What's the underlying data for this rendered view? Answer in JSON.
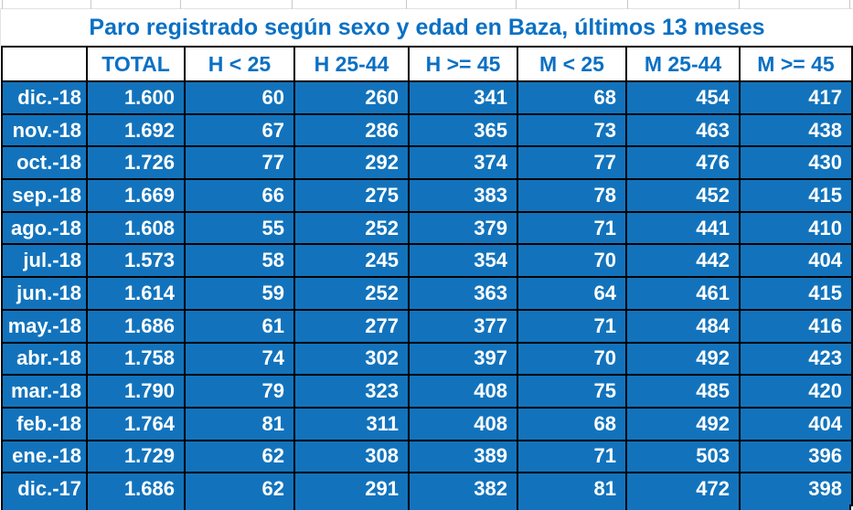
{
  "title": "Paro registrado según sexo y edad en Baza, últimos 13 meses",
  "table": {
    "corner_label": "",
    "columns": [
      "TOTAL",
      "H < 25",
      "H 25-44",
      "H >= 45",
      "M < 25",
      "M 25-44",
      "M >= 45"
    ],
    "rows": [
      {
        "month": "dic.-18",
        "values": [
          "1.600",
          "60",
          "260",
          "341",
          "68",
          "454",
          "417"
        ]
      },
      {
        "month": "nov.-18",
        "values": [
          "1.692",
          "67",
          "286",
          "365",
          "73",
          "463",
          "438"
        ]
      },
      {
        "month": "oct.-18",
        "values": [
          "1.726",
          "77",
          "292",
          "374",
          "77",
          "476",
          "430"
        ]
      },
      {
        "month": "sep.-18",
        "values": [
          "1.669",
          "66",
          "275",
          "383",
          "78",
          "452",
          "415"
        ]
      },
      {
        "month": "ago.-18",
        "values": [
          "1.608",
          "55",
          "252",
          "379",
          "71",
          "441",
          "410"
        ]
      },
      {
        "month": "jul.-18",
        "values": [
          "1.573",
          "58",
          "245",
          "354",
          "70",
          "442",
          "404"
        ]
      },
      {
        "month": "jun.-18",
        "values": [
          "1.614",
          "59",
          "252",
          "363",
          "64",
          "461",
          "415"
        ]
      },
      {
        "month": "may.-18",
        "values": [
          "1.686",
          "61",
          "277",
          "377",
          "71",
          "484",
          "416"
        ]
      },
      {
        "month": "abr.-18",
        "values": [
          "1.758",
          "74",
          "302",
          "397",
          "70",
          "492",
          "423"
        ]
      },
      {
        "month": "mar.-18",
        "values": [
          "1.790",
          "79",
          "323",
          "408",
          "75",
          "485",
          "420"
        ]
      },
      {
        "month": "feb.-18",
        "values": [
          "1.764",
          "81",
          "311",
          "408",
          "68",
          "492",
          "404"
        ]
      },
      {
        "month": "ene.-18",
        "values": [
          "1.729",
          "62",
          "308",
          "389",
          "71",
          "503",
          "396"
        ]
      },
      {
        "month": "dic.-17",
        "values": [
          "1.686",
          "62",
          "291",
          "382",
          "81",
          "472",
          "398"
        ]
      }
    ]
  },
  "colors": {
    "cell_fill_blue": "#1273BC",
    "heading_text_blue": "#0A70C4",
    "cell_text_white": "#FFFFFF",
    "border_black": "#000000",
    "gridline_gray": "#C9C9C9"
  }
}
